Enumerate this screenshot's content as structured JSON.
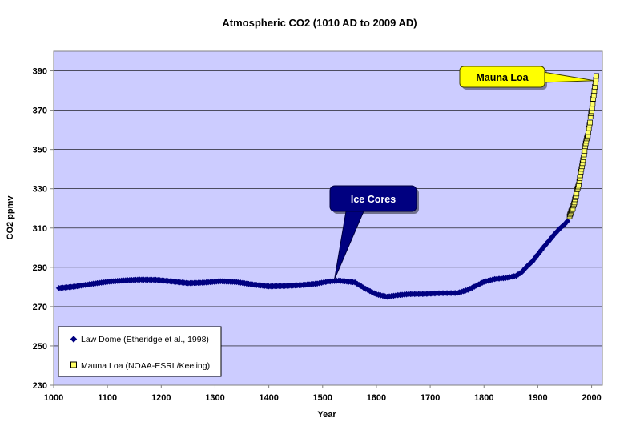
{
  "chart_data": {
    "type": "scatter",
    "title": "Atmospheric CO2 (1010 AD to 2009 AD)",
    "xlabel": "Year",
    "ylabel": "CO2 ppmv",
    "xlim": [
      1000,
      2020
    ],
    "ylim": [
      230,
      400
    ],
    "x_ticks": [
      1000,
      1100,
      1200,
      1300,
      1400,
      1500,
      1600,
      1700,
      1800,
      1900,
      2000
    ],
    "y_ticks": [
      230,
      250,
      270,
      290,
      310,
      330,
      350,
      370,
      390
    ],
    "grid": "horizontal",
    "plot_background": "#ccccff",
    "legend_position": "bottom-left",
    "series": [
      {
        "name": "Law Dome (Etheridge et al., 1998)",
        "color": "#000080",
        "marker": "diamond",
        "points": [
          [
            1010,
            279.4
          ],
          [
            1040,
            280.2
          ],
          [
            1070,
            281.5
          ],
          [
            1100,
            282.6
          ],
          [
            1130,
            283.3
          ],
          [
            1160,
            283.7
          ],
          [
            1190,
            283.6
          ],
          [
            1220,
            282.8
          ],
          [
            1250,
            281.9
          ],
          [
            1280,
            282.2
          ],
          [
            1310,
            282.9
          ],
          [
            1340,
            282.5
          ],
          [
            1370,
            281.2
          ],
          [
            1400,
            280.3
          ],
          [
            1430,
            280.5
          ],
          [
            1460,
            280.9
          ],
          [
            1490,
            281.7
          ],
          [
            1510,
            282.7
          ],
          [
            1530,
            283.2
          ],
          [
            1560,
            282.3
          ],
          [
            1580,
            279.0
          ],
          [
            1600,
            276.2
          ],
          [
            1620,
            275.0
          ],
          [
            1640,
            275.8
          ],
          [
            1660,
            276.3
          ],
          [
            1690,
            276.4
          ],
          [
            1720,
            276.8
          ],
          [
            1750,
            276.9
          ],
          [
            1770,
            278.5
          ],
          [
            1790,
            281.2
          ],
          [
            1800,
            282.6
          ],
          [
            1820,
            284.0
          ],
          [
            1840,
            284.5
          ],
          [
            1860,
            285.7
          ],
          [
            1870,
            287.5
          ],
          [
            1880,
            290.5
          ],
          [
            1890,
            293.0
          ],
          [
            1900,
            296.5
          ],
          [
            1910,
            300.0
          ],
          [
            1920,
            303.2
          ],
          [
            1930,
            306.5
          ],
          [
            1940,
            309.5
          ],
          [
            1950,
            312.0
          ],
          [
            1955,
            313.5
          ],
          [
            1960,
            316.0
          ]
        ]
      },
      {
        "name": "Mauna Loa (NOAA-ESRL/Keeling)",
        "color": "#ffff66",
        "marker": "square",
        "points": [
          [
            1959,
            316.0
          ],
          [
            1960,
            316.9
          ],
          [
            1961,
            317.6
          ],
          [
            1962,
            318.5
          ],
          [
            1963,
            319.0
          ],
          [
            1964,
            319.6
          ],
          [
            1965,
            320.0
          ],
          [
            1966,
            321.4
          ],
          [
            1967,
            322.2
          ],
          [
            1968,
            323.0
          ],
          [
            1969,
            324.6
          ],
          [
            1970,
            325.7
          ],
          [
            1971,
            326.3
          ],
          [
            1972,
            327.5
          ],
          [
            1973,
            329.7
          ],
          [
            1974,
            330.2
          ],
          [
            1975,
            331.1
          ],
          [
            1976,
            332.0
          ],
          [
            1977,
            333.8
          ],
          [
            1978,
            335.4
          ],
          [
            1979,
            336.8
          ],
          [
            1980,
            338.7
          ],
          [
            1981,
            340.1
          ],
          [
            1982,
            341.4
          ],
          [
            1983,
            343.0
          ],
          [
            1984,
            344.6
          ],
          [
            1985,
            346.0
          ],
          [
            1986,
            347.4
          ],
          [
            1987,
            349.2
          ],
          [
            1988,
            351.6
          ],
          [
            1989,
            353.1
          ],
          [
            1990,
            354.4
          ],
          [
            1991,
            355.6
          ],
          [
            1992,
            356.4
          ],
          [
            1993,
            357.1
          ],
          [
            1994,
            358.8
          ],
          [
            1995,
            360.8
          ],
          [
            1996,
            362.6
          ],
          [
            1997,
            363.7
          ],
          [
            1998,
            366.7
          ],
          [
            1999,
            368.4
          ],
          [
            2000,
            369.5
          ],
          [
            2001,
            371.1
          ],
          [
            2002,
            373.2
          ],
          [
            2003,
            375.8
          ],
          [
            2004,
            377.5
          ],
          [
            2005,
            379.8
          ],
          [
            2006,
            381.9
          ],
          [
            2007,
            383.8
          ],
          [
            2008,
            385.6
          ],
          [
            2009,
            387.4
          ]
        ]
      }
    ],
    "annotations": [
      {
        "text": "Ice Cores",
        "target": [
          1525,
          285
        ],
        "fill": "#000080",
        "text_color": "#ffffff"
      },
      {
        "text": "Mauna Loa",
        "target": [
          2005,
          385
        ],
        "fill": "#ffff00",
        "text_color": "#000000"
      }
    ]
  }
}
